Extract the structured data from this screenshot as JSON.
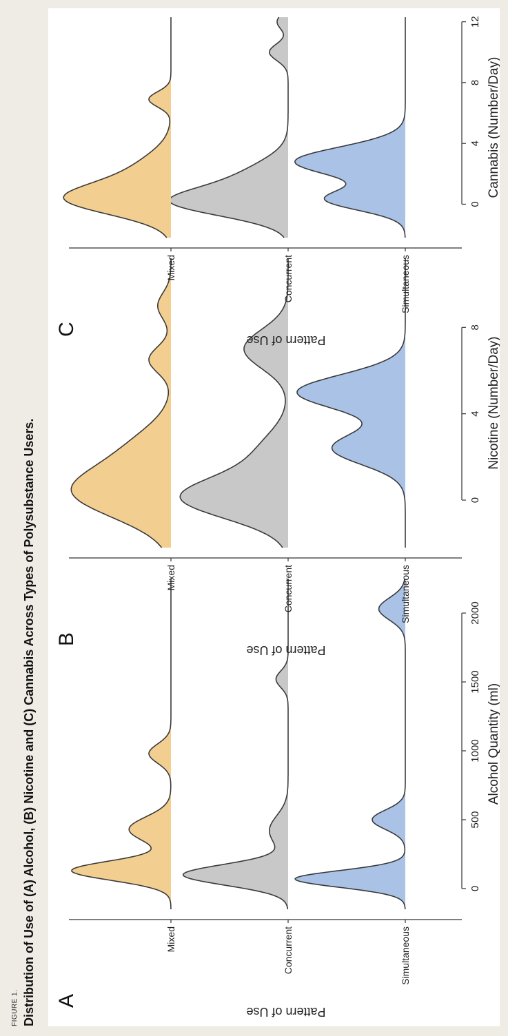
{
  "figure_label": "FIGURE 1.",
  "figure_title": "Distribution of Use of (A) Alcohol, (B) Nicotine and (C) Cannabis Across Types of Polysubstance Users.",
  "colors": {
    "Simultaneous": "#a9c2e6",
    "Concurrent": "#c8c8c8",
    "Mixed": "#f2cf91",
    "line": "#3a3a3a",
    "background": "#efebe5",
    "panel": "#ffffff"
  },
  "chart_data": [
    {
      "type": "ridgeline",
      "panel_label": "A",
      "xlabel": "Alcohol Quantity (ml)",
      "ylabel": "Pattern of Use",
      "xlim": [
        -150,
        2250
      ],
      "xticks": [
        0,
        500,
        1000,
        1500,
        2000
      ],
      "tick_labels": [
        "0",
        "500",
        "1000",
        "1500",
        "2000"
      ],
      "categories": [
        "Simultaneous",
        "Concurrent",
        "Mixed"
      ],
      "series": [
        {
          "name": "Simultaneous",
          "peaks": [
            [
              70,
              1.0,
              60
            ],
            [
              500,
              0.3,
              70
            ],
            [
              2030,
              0.24,
              80
            ]
          ]
        },
        {
          "name": "Concurrent",
          "peaks": [
            [
              100,
              0.95,
              75
            ],
            [
              420,
              0.17,
              110
            ],
            [
              1520,
              0.11,
              60
            ]
          ]
        },
        {
          "name": "Mixed",
          "peaks": [
            [
              130,
              0.9,
              70
            ],
            [
              430,
              0.38,
              90
            ],
            [
              980,
              0.2,
              70
            ]
          ]
        }
      ]
    },
    {
      "type": "ridgeline",
      "panel_label": "B",
      "xlabel": "Nicotine (Number/Day)",
      "ylabel": "Pattern of Use",
      "xlim": [
        -2.2,
        11.2
      ],
      "xticks": [
        0,
        4,
        8
      ],
      "tick_labels": [
        "0",
        "4",
        "8"
      ],
      "categories": [
        "Simultaneous",
        "Concurrent",
        "Mixed"
      ],
      "series": [
        {
          "name": "Simultaneous",
          "peaks": [
            [
              2.4,
              0.66,
              0.75
            ],
            [
              5.0,
              0.98,
              0.8
            ]
          ]
        },
        {
          "name": "Concurrent",
          "peaks": [
            [
              0.1,
              0.95,
              0.95
            ],
            [
              2.2,
              0.25,
              1.0
            ],
            [
              7.0,
              0.4,
              0.9
            ]
          ]
        },
        {
          "name": "Mixed",
          "peaks": [
            [
              0.4,
              0.88,
              1.2
            ],
            [
              2.6,
              0.25,
              1.0
            ],
            [
              6.5,
              0.2,
              0.6
            ],
            [
              9.0,
              0.12,
              0.6
            ]
          ]
        }
      ]
    },
    {
      "type": "ridgeline",
      "panel_label": "C",
      "xlabel": "Cannabis (Number/Day)",
      "ylabel": "Pattern of Use",
      "xlim": [
        -2.2,
        12.3
      ],
      "xticks": [
        0,
        4,
        8,
        12
      ],
      "tick_labels": [
        "0",
        "4",
        "8",
        "12"
      ],
      "categories": [
        "Simultaneous",
        "Concurrent",
        "Mixed"
      ],
      "series": [
        {
          "name": "Simultaneous",
          "peaks": [
            [
              0.3,
              0.7,
              0.7
            ],
            [
              2.8,
              1.0,
              0.95
            ]
          ]
        },
        {
          "name": "Concurrent",
          "peaks": [
            [
              0.1,
              0.95,
              0.9
            ],
            [
              1.8,
              0.38,
              1.1
            ],
            [
              10.0,
              0.17,
              0.55
            ],
            [
              12.0,
              0.1,
              0.5
            ]
          ]
        },
        {
          "name": "Mixed",
          "peaks": [
            [
              0.3,
              0.88,
              1.0
            ],
            [
              2.2,
              0.3,
              1.2
            ],
            [
              6.9,
              0.2,
              0.5
            ]
          ]
        }
      ]
    }
  ]
}
